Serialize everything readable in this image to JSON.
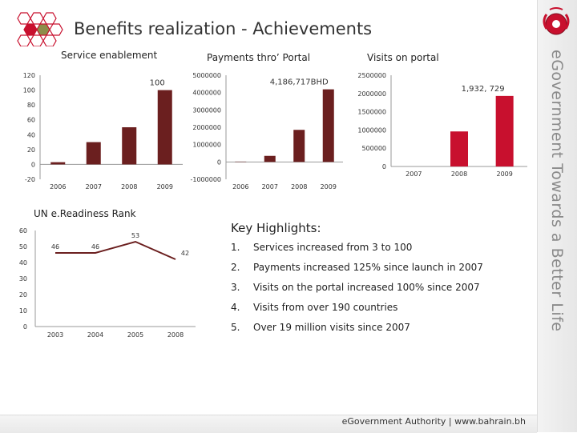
{
  "slide": {
    "title": "Benefits realization - Achievements",
    "sidebar_text": "eGovernment Towards a Better Life",
    "footer_text": "eGovernment Authority | www.bahrain.bh"
  },
  "colors": {
    "bar_dark": "#6b1f1f",
    "bar_red": "#c8102e",
    "line": "#6b1f1f"
  },
  "chart_data": [
    {
      "type": "bar",
      "title": "Service enablement",
      "categories": [
        "2006",
        "2007",
        "2008",
        "2009"
      ],
      "values": [
        3,
        30,
        50,
        100
      ],
      "data_labels": [
        "",
        "",
        "",
        "100"
      ],
      "ylim": [
        -20,
        120
      ],
      "yticks": [
        "-20",
        "0",
        "20",
        "40",
        "60",
        "80",
        "100",
        "120"
      ],
      "ytick_values": [
        -20,
        0,
        20,
        40,
        60,
        80,
        100,
        120
      ],
      "legend": "none"
    },
    {
      "type": "bar",
      "title": "Payments thro’ Portal",
      "categories": [
        "2006",
        "2007",
        "2008",
        "2009"
      ],
      "values": [
        20000,
        350000,
        1850000,
        4186717
      ],
      "data_labels": [
        "",
        "",
        "",
        "4,186,717BHD"
      ],
      "ylim": [
        -1000000,
        5000000
      ],
      "yticks": [
        "-1000000",
        "0",
        "1000000",
        "2000000",
        "3000000",
        "4000000",
        "5000000"
      ],
      "ytick_values": [
        -1000000,
        0,
        1000000,
        2000000,
        3000000,
        4000000,
        5000000
      ],
      "legend": "none"
    },
    {
      "type": "bar",
      "title": "Visits on portal",
      "categories": [
        "2007",
        "2008",
        "2009"
      ],
      "values": [
        0,
        960000,
        1932729
      ],
      "data_labels": [
        "",
        "",
        "1,932, 729"
      ],
      "ylim": [
        0,
        2500000
      ],
      "yticks": [
        "0",
        "500000",
        "1000000",
        "1500000",
        "2000000",
        "2500000"
      ],
      "ytick_values": [
        0,
        500000,
        1000000,
        1500000,
        2000000,
        2500000
      ],
      "legend": "none"
    },
    {
      "type": "line",
      "title": "UN e.Readiness Rank",
      "categories": [
        "2003",
        "2004",
        "2005",
        "2008"
      ],
      "values": [
        46,
        46,
        53,
        42
      ],
      "data_labels": [
        "46",
        "46",
        "53",
        "42"
      ],
      "ylim": [
        0,
        60
      ],
      "yticks": [
        "0",
        "10",
        "20",
        "30",
        "40",
        "50",
        "60"
      ],
      "ytick_values": [
        0,
        10,
        20,
        30,
        40,
        50,
        60
      ],
      "legend": "none"
    }
  ],
  "highlights": {
    "title": "Key Highlights:",
    "items": [
      {
        "num": "1.",
        "text": "Services increased from 3 to 100"
      },
      {
        "num": "2.",
        "text": "Payments increased 125% since launch in 2007"
      },
      {
        "num": "3.",
        "text": "Visits on the portal increased  100% since 2007"
      },
      {
        "num": "4.",
        "text": "Visits from over 190 countries"
      },
      {
        "num": "5.",
        "text": "Over 19 million visits since 2007"
      }
    ]
  }
}
